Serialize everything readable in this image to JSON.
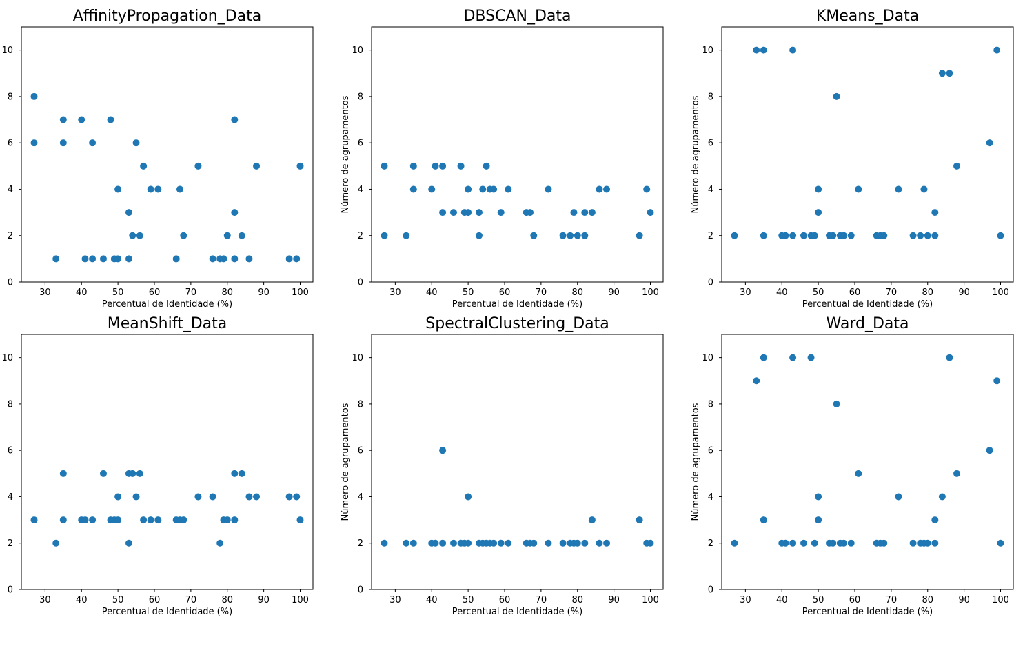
{
  "colors": {
    "marker": "#1f77b4",
    "axis": "#000000",
    "background": "#ffffff"
  },
  "chart_data": [
    {
      "type": "scatter",
      "title": "AffinityPropagation_Data",
      "xlabel": "Percentual de Identidade (%)",
      "ylabel": "",
      "xlim": [
        23.5,
        103.5
      ],
      "ylim": [
        0,
        11
      ],
      "xticks": [
        30,
        40,
        50,
        60,
        70,
        80,
        90,
        100
      ],
      "yticks": [
        0,
        2,
        4,
        6,
        8,
        10
      ],
      "grid": false,
      "points": [
        [
          27,
          8
        ],
        [
          27,
          6
        ],
        [
          33,
          1
        ],
        [
          35,
          7
        ],
        [
          35,
          6
        ],
        [
          40,
          7
        ],
        [
          41,
          1
        ],
        [
          43,
          6
        ],
        [
          43,
          1
        ],
        [
          46,
          1
        ],
        [
          48,
          7
        ],
        [
          49,
          1
        ],
        [
          50,
          4
        ],
        [
          50,
          1
        ],
        [
          53,
          3
        ],
        [
          53,
          1
        ],
        [
          54,
          2
        ],
        [
          55,
          6
        ],
        [
          56,
          2
        ],
        [
          57,
          5
        ],
        [
          59,
          4
        ],
        [
          61,
          4
        ],
        [
          66,
          1
        ],
        [
          67,
          4
        ],
        [
          68,
          2
        ],
        [
          72,
          5
        ],
        [
          76,
          1
        ],
        [
          78,
          1
        ],
        [
          79,
          1
        ],
        [
          80,
          2
        ],
        [
          82,
          7
        ],
        [
          82,
          3
        ],
        [
          82,
          1
        ],
        [
          84,
          2
        ],
        [
          86,
          1
        ],
        [
          88,
          5
        ],
        [
          97,
          1
        ],
        [
          99,
          1
        ],
        [
          100,
          5
        ]
      ]
    },
    {
      "type": "scatter",
      "title": "DBSCAN_Data",
      "xlabel": "Percentual de Identidade (%)",
      "ylabel": "Número de agrupamentos",
      "xlim": [
        23.5,
        103.5
      ],
      "ylim": [
        0,
        11
      ],
      "xticks": [
        30,
        40,
        50,
        60,
        70,
        80,
        90,
        100
      ],
      "yticks": [
        0,
        2,
        4,
        6,
        8,
        10
      ],
      "grid": false,
      "points": [
        [
          27,
          5
        ],
        [
          27,
          2
        ],
        [
          33,
          2
        ],
        [
          35,
          5
        ],
        [
          35,
          4
        ],
        [
          40,
          4
        ],
        [
          41,
          5
        ],
        [
          43,
          5
        ],
        [
          43,
          3
        ],
        [
          46,
          3
        ],
        [
          48,
          5
        ],
        [
          49,
          3
        ],
        [
          50,
          4
        ],
        [
          50,
          3
        ],
        [
          53,
          3
        ],
        [
          53,
          2
        ],
        [
          54,
          4
        ],
        [
          55,
          5
        ],
        [
          56,
          4
        ],
        [
          57,
          4
        ],
        [
          59,
          3
        ],
        [
          61,
          4
        ],
        [
          66,
          3
        ],
        [
          67,
          3
        ],
        [
          68,
          2
        ],
        [
          72,
          4
        ],
        [
          76,
          2
        ],
        [
          78,
          2
        ],
        [
          79,
          3
        ],
        [
          80,
          2
        ],
        [
          82,
          3
        ],
        [
          82,
          2
        ],
        [
          84,
          3
        ],
        [
          86,
          4
        ],
        [
          88,
          4
        ],
        [
          97,
          2
        ],
        [
          99,
          4
        ],
        [
          100,
          3
        ]
      ]
    },
    {
      "type": "scatter",
      "title": "KMeans_Data",
      "xlabel": "Percentual de Identidade (%)",
      "ylabel": "Número de agrupamentos",
      "xlim": [
        23.5,
        103.5
      ],
      "ylim": [
        0,
        11
      ],
      "xticks": [
        30,
        40,
        50,
        60,
        70,
        80,
        90,
        100
      ],
      "yticks": [
        0,
        2,
        4,
        6,
        8,
        10
      ],
      "grid": false,
      "points": [
        [
          27,
          2
        ],
        [
          33,
          10
        ],
        [
          35,
          10
        ],
        [
          35,
          2
        ],
        [
          40,
          2
        ],
        [
          41,
          2
        ],
        [
          43,
          10
        ],
        [
          43,
          2
        ],
        [
          46,
          2
        ],
        [
          48,
          2
        ],
        [
          49,
          2
        ],
        [
          50,
          4
        ],
        [
          50,
          3
        ],
        [
          53,
          2
        ],
        [
          54,
          2
        ],
        [
          55,
          8
        ],
        [
          56,
          2
        ],
        [
          57,
          2
        ],
        [
          59,
          2
        ],
        [
          61,
          4
        ],
        [
          66,
          2
        ],
        [
          67,
          2
        ],
        [
          68,
          2
        ],
        [
          72,
          4
        ],
        [
          76,
          2
        ],
        [
          78,
          2
        ],
        [
          79,
          4
        ],
        [
          80,
          2
        ],
        [
          82,
          3
        ],
        [
          82,
          2
        ],
        [
          84,
          9
        ],
        [
          86,
          9
        ],
        [
          88,
          5
        ],
        [
          97,
          6
        ],
        [
          99,
          10
        ],
        [
          100,
          2
        ]
      ]
    },
    {
      "type": "scatter",
      "title": "MeanShift_Data",
      "xlabel": "Percentual de Identidade (%)",
      "ylabel": "",
      "xlim": [
        23.5,
        103.5
      ],
      "ylim": [
        0,
        11
      ],
      "xticks": [
        30,
        40,
        50,
        60,
        70,
        80,
        90,
        100
      ],
      "yticks": [
        0,
        2,
        4,
        6,
        8,
        10
      ],
      "grid": false,
      "points": [
        [
          27,
          3
        ],
        [
          33,
          2
        ],
        [
          35,
          5
        ],
        [
          35,
          3
        ],
        [
          40,
          3
        ],
        [
          41,
          3
        ],
        [
          43,
          3
        ],
        [
          46,
          5
        ],
        [
          48,
          3
        ],
        [
          49,
          3
        ],
        [
          50,
          4
        ],
        [
          50,
          3
        ],
        [
          53,
          5
        ],
        [
          53,
          2
        ],
        [
          54,
          5
        ],
        [
          55,
          4
        ],
        [
          56,
          5
        ],
        [
          57,
          3
        ],
        [
          59,
          3
        ],
        [
          61,
          3
        ],
        [
          66,
          3
        ],
        [
          67,
          3
        ],
        [
          68,
          3
        ],
        [
          72,
          4
        ],
        [
          76,
          4
        ],
        [
          78,
          2
        ],
        [
          79,
          3
        ],
        [
          80,
          3
        ],
        [
          82,
          5
        ],
        [
          82,
          3
        ],
        [
          84,
          5
        ],
        [
          86,
          4
        ],
        [
          88,
          4
        ],
        [
          97,
          4
        ],
        [
          99,
          4
        ],
        [
          100,
          3
        ]
      ]
    },
    {
      "type": "scatter",
      "title": "SpectralClustering_Data",
      "xlabel": "Percentual de Identidade (%)",
      "ylabel": "Número de agrupamentos",
      "xlim": [
        23.5,
        103.5
      ],
      "ylim": [
        0,
        11
      ],
      "xticks": [
        30,
        40,
        50,
        60,
        70,
        80,
        90,
        100
      ],
      "yticks": [
        0,
        2,
        4,
        6,
        8,
        10
      ],
      "grid": false,
      "points": [
        [
          27,
          2
        ],
        [
          33,
          2
        ],
        [
          35,
          2
        ],
        [
          40,
          2
        ],
        [
          41,
          2
        ],
        [
          43,
          6
        ],
        [
          43,
          2
        ],
        [
          46,
          2
        ],
        [
          48,
          2
        ],
        [
          49,
          2
        ],
        [
          50,
          4
        ],
        [
          50,
          2
        ],
        [
          53,
          2
        ],
        [
          54,
          2
        ],
        [
          55,
          2
        ],
        [
          56,
          2
        ],
        [
          57,
          2
        ],
        [
          59,
          2
        ],
        [
          61,
          2
        ],
        [
          66,
          2
        ],
        [
          67,
          2
        ],
        [
          68,
          2
        ],
        [
          72,
          2
        ],
        [
          76,
          2
        ],
        [
          78,
          2
        ],
        [
          79,
          2
        ],
        [
          80,
          2
        ],
        [
          82,
          2
        ],
        [
          84,
          3
        ],
        [
          86,
          2
        ],
        [
          88,
          2
        ],
        [
          97,
          3
        ],
        [
          99,
          2
        ],
        [
          100,
          2
        ]
      ]
    },
    {
      "type": "scatter",
      "title": "Ward_Data",
      "xlabel": "Percentual de Identidade (%)",
      "ylabel": "Número de agrupamentos",
      "xlim": [
        23.5,
        103.5
      ],
      "ylim": [
        0,
        11
      ],
      "xticks": [
        30,
        40,
        50,
        60,
        70,
        80,
        90,
        100
      ],
      "yticks": [
        0,
        2,
        4,
        6,
        8,
        10
      ],
      "grid": false,
      "points": [
        [
          27,
          2
        ],
        [
          33,
          9
        ],
        [
          35,
          10
        ],
        [
          35,
          3
        ],
        [
          40,
          2
        ],
        [
          41,
          2
        ],
        [
          43,
          10
        ],
        [
          43,
          2
        ],
        [
          46,
          2
        ],
        [
          48,
          10
        ],
        [
          49,
          2
        ],
        [
          50,
          4
        ],
        [
          50,
          3
        ],
        [
          53,
          2
        ],
        [
          54,
          2
        ],
        [
          55,
          8
        ],
        [
          56,
          2
        ],
        [
          57,
          2
        ],
        [
          59,
          2
        ],
        [
          61,
          5
        ],
        [
          66,
          2
        ],
        [
          67,
          2
        ],
        [
          68,
          2
        ],
        [
          72,
          4
        ],
        [
          76,
          2
        ],
        [
          78,
          2
        ],
        [
          79,
          2
        ],
        [
          80,
          2
        ],
        [
          82,
          3
        ],
        [
          82,
          2
        ],
        [
          84,
          4
        ],
        [
          86,
          10
        ],
        [
          88,
          5
        ],
        [
          97,
          6
        ],
        [
          99,
          9
        ],
        [
          100,
          2
        ]
      ]
    }
  ]
}
